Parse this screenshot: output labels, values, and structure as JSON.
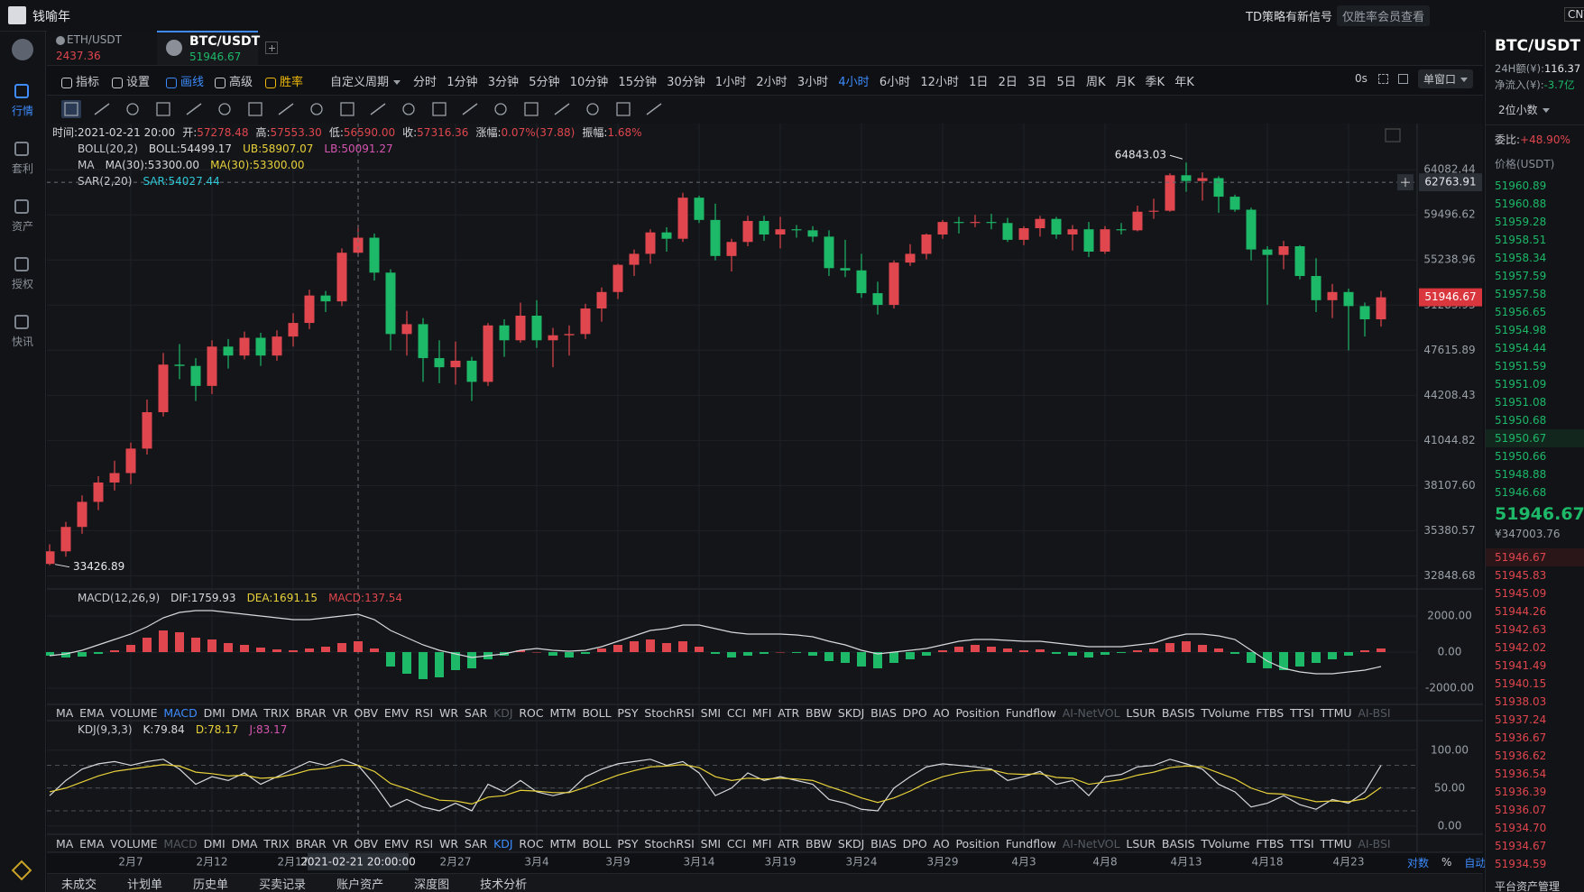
{
  "header": {
    "user": "钱喻年",
    "signal": "TD策略有新信号",
    "member": "仅胜率会员查看",
    "currency": "CNY"
  },
  "sidebar": {
    "items": [
      "行情",
      "套利",
      "资产",
      "授权",
      "快讯"
    ],
    "active": 0
  },
  "tabs": [
    {
      "symbol": "ETH/USDT",
      "price": "2437.36"
    },
    {
      "symbol": "BTC/USDT",
      "price": "51946.67"
    }
  ],
  "toolbar": {
    "tools": [
      "指标",
      "设置",
      "画线",
      "高级",
      "胜率"
    ],
    "custom": "自定义周期",
    "periods": [
      "分时",
      "1分钟",
      "3分钟",
      "5分钟",
      "10分钟",
      "15分钟",
      "30分钟",
      "1小时",
      "2小时",
      "3小时",
      "4小时",
      "6小时",
      "12小时",
      "1日",
      "2日",
      "3日",
      "5日",
      "周K",
      "月K",
      "季K",
      "年K"
    ],
    "active_period": 10,
    "timer": "0s",
    "window": "单窗口"
  },
  "chart_data": {
    "type": "candlestick",
    "log_scale": true,
    "grid": true,
    "up_color": "#e0464e",
    "down_color": "#1db868",
    "info": [
      {
        "label": "时间:",
        "value": "2021-02-21 20:00",
        "color": "#d6d8dc"
      },
      {
        "label": "开:",
        "value": "57278.48",
        "color": "#e0464e"
      },
      {
        "label": "高:",
        "value": "57553.30",
        "color": "#e0464e"
      },
      {
        "label": "低:",
        "value": "56590.00",
        "color": "#e0464e"
      },
      {
        "label": "收:",
        "value": "57316.36",
        "color": "#e0464e"
      },
      {
        "label": "涨幅:",
        "value": "0.07%(37.88)",
        "color": "#e0464e"
      },
      {
        "label": "振幅:",
        "value": "1.68%",
        "color": "#e0464e"
      }
    ],
    "overlays": [
      {
        "name": "BOLL(20,2)",
        "items": [
          {
            "text": "BOLL:54499.17",
            "color": "#d6d8dc"
          },
          {
            "text": "UB:58907.07",
            "color": "#e8d13a"
          },
          {
            "text": "LB:50091.27",
            "color": "#d655b0"
          }
        ]
      },
      {
        "name": "MA",
        "items": [
          {
            "text": "MA(30):53300.00",
            "color": "#d6d8dc"
          },
          {
            "text": "MA(30):53300.00",
            "color": "#e8d13a"
          }
        ]
      },
      {
        "name": "SAR(2,20)",
        "items": [
          {
            "text": "SAR:54027.44",
            "color": "#2fc7d6"
          }
        ]
      }
    ],
    "categories": [
      null,
      null,
      null,
      null,
      null,
      "2月7",
      null,
      null,
      null,
      null,
      "2月12",
      null,
      null,
      null,
      null,
      "2月17",
      null,
      null,
      null,
      null,
      null,
      null,
      null,
      null,
      null,
      "2月27",
      null,
      null,
      null,
      null,
      "3月4",
      null,
      null,
      null,
      null,
      "3月9",
      null,
      null,
      null,
      null,
      "3月14",
      null,
      null,
      null,
      null,
      "3月19",
      null,
      null,
      null,
      null,
      "3月24",
      null,
      null,
      null,
      null,
      "3月29",
      null,
      null,
      null,
      null,
      "4月3",
      null,
      null,
      null,
      null,
      "4月8",
      null,
      null,
      null,
      null,
      "4月13",
      null,
      null,
      null,
      null,
      "4月18",
      null,
      null,
      null,
      null,
      "4月23",
      null,
      null
    ],
    "ohlc": [
      [
        33500,
        34600,
        33426.89,
        34200
      ],
      [
        34200,
        35900,
        33900,
        35600
      ],
      [
        35600,
        37500,
        35200,
        37100
      ],
      [
        37100,
        38700,
        36600,
        38300
      ],
      [
        38300,
        39700,
        37800,
        38900
      ],
      [
        38900,
        40900,
        38200,
        40500
      ],
      [
        40500,
        43900,
        40100,
        43000
      ],
      [
        43000,
        47400,
        42700,
        46500
      ],
      [
        46500,
        48100,
        45400,
        46400
      ],
      [
        46400,
        47000,
        43800,
        44900
      ],
      [
        44900,
        48400,
        44300,
        47900
      ],
      [
        47900,
        48500,
        46200,
        47200
      ],
      [
        47200,
        49100,
        46900,
        48600
      ],
      [
        48600,
        49000,
        46400,
        47200
      ],
      [
        47200,
        49200,
        46800,
        48700
      ],
      [
        48700,
        50600,
        47900,
        49800
      ],
      [
        49800,
        52600,
        49300,
        52100
      ],
      [
        52100,
        52500,
        50700,
        51600
      ],
      [
        51600,
        56300,
        51200,
        55900
      ],
      [
        55900,
        58500,
        55600,
        57300
      ],
      [
        57300,
        57700,
        53400,
        54100
      ],
      [
        54100,
        54400,
        47600,
        48900
      ],
      [
        48900,
        50800,
        47200,
        49700
      ],
      [
        49700,
        50200,
        45200,
        47000
      ],
      [
        47000,
        48400,
        45100,
        46300
      ],
      [
        46300,
        48300,
        45000,
        46800
      ],
      [
        46800,
        47100,
        43800,
        45200
      ],
      [
        45200,
        49800,
        44900,
        49600
      ],
      [
        49600,
        50100,
        47100,
        48400
      ],
      [
        48400,
        51500,
        48200,
        50400
      ],
      [
        50400,
        51700,
        47800,
        48400
      ],
      [
        48400,
        49400,
        46300,
        48800
      ],
      [
        48800,
        49600,
        47200,
        48900
      ],
      [
        48900,
        51400,
        48500,
        51000
      ],
      [
        51000,
        52800,
        49900,
        52400
      ],
      [
        52400,
        54900,
        51800,
        54800
      ],
      [
        54800,
        56200,
        53800,
        55800
      ],
      [
        55800,
        58100,
        54900,
        57800
      ],
      [
        57800,
        58300,
        56000,
        57200
      ],
      [
        57200,
        61700,
        56900,
        61200
      ],
      [
        61200,
        61400,
        58700,
        59000
      ],
      [
        59000,
        60600,
        55200,
        55600
      ],
      [
        55600,
        57200,
        54200,
        56900
      ],
      [
        56900,
        59400,
        56500,
        58900
      ],
      [
        58900,
        59400,
        57000,
        57600
      ],
      [
        57600,
        59300,
        56300,
        58100
      ],
      [
        58100,
        58500,
        57300,
        58000
      ],
      [
        58000,
        58400,
        56900,
        57400
      ],
      [
        57400,
        58000,
        53800,
        54500
      ],
      [
        54500,
        57100,
        53700,
        54300
      ],
      [
        54300,
        55800,
        51900,
        52300
      ],
      [
        52300,
        53300,
        50500,
        51300
      ],
      [
        51300,
        55200,
        51000,
        55000
      ],
      [
        55000,
        56700,
        54700,
        55800
      ],
      [
        55800,
        57700,
        55300,
        57600
      ],
      [
        57600,
        59000,
        57200,
        58800
      ],
      [
        58800,
        59300,
        57700,
        58700
      ],
      [
        58700,
        59500,
        58300,
        58800
      ],
      [
        58800,
        59600,
        58100,
        58700
      ],
      [
        58700,
        59200,
        56900,
        57100
      ],
      [
        57100,
        58400,
        56600,
        58200
      ],
      [
        58200,
        59400,
        57400,
        59100
      ],
      [
        59100,
        59300,
        57200,
        57600
      ],
      [
        57600,
        58500,
        56100,
        58100
      ],
      [
        58100,
        58800,
        55500,
        56000
      ],
      [
        56000,
        58400,
        55800,
        58100
      ],
      [
        58100,
        58700,
        57600,
        58000
      ],
      [
        58000,
        60400,
        57900,
        59800
      ],
      [
        59800,
        61100,
        59100,
        59900
      ],
      [
        59900,
        63700,
        59800,
        63500
      ],
      [
        63500,
        64843.03,
        61800,
        62900
      ],
      [
        62900,
        63800,
        60900,
        63200
      ],
      [
        63200,
        63400,
        59700,
        61300
      ],
      [
        61300,
        61500,
        59800,
        60000
      ],
      [
        60000,
        60200,
        55200,
        56200
      ],
      [
        56200,
        56500,
        51300,
        55700
      ],
      [
        55700,
        57000,
        54400,
        56500
      ],
      [
        56500,
        56600,
        53500,
        53800
      ],
      [
        53800,
        55400,
        50700,
        51700
      ],
      [
        51700,
        53100,
        50200,
        52400
      ],
      [
        52400,
        52700,
        47600,
        51200
      ],
      [
        51200,
        51500,
        48700,
        50100
      ],
      [
        50100,
        52500,
        49500,
        51946.67
      ]
    ],
    "ylim": [
      32147,
      68830
    ],
    "yticks": [
      64082.44,
      59496.62,
      55238.96,
      51283.93,
      47615.89,
      44208.43,
      41044.82,
      {
        "value": 38107.6,
        "label": "38107.60"
      },
      35380.57,
      32848.68
    ],
    "crosshair": {
      "price": 62763.91,
      "time": "2021-02-21 20:00:00"
    },
    "axis_modes": [
      "对数",
      "%",
      "自动"
    ],
    "macd": {
      "name": "MACD(12,26,9)",
      "items": [
        {
          "text": "DIF:1759.93",
          "color": "#d6d8dc"
        },
        {
          "text": "DEA:1691.15",
          "color": "#e8d13a"
        },
        {
          "text": "MACD:137.54",
          "color": "#e0464e"
        }
      ],
      "ylim": [
        -2900,
        3400
      ],
      "yticks": [
        {
          "value": 2000,
          "label": "2000.00"
        },
        {
          "value": 0,
          "label": "0.00"
        },
        {
          "value": -2000,
          "label": "-2000.00"
        }
      ],
      "series": [
        {
          "name": "MACD",
          "type": "bar",
          "values": [
            -200,
            -300,
            -250,
            -100,
            100,
            400,
            800,
            1200,
            1100,
            800,
            700,
            500,
            400,
            250,
            150,
            100,
            200,
            300,
            500,
            600,
            200,
            -800,
            -1200,
            -1500,
            -1400,
            -1000,
            -900,
            -400,
            -200,
            100,
            0,
            -200,
            -300,
            -100,
            200,
            400,
            600,
            700,
            500,
            600,
            300,
            -100,
            -300,
            -200,
            -100,
            0,
            -50,
            -200,
            -500,
            -600,
            -800,
            -900,
            -600,
            -400,
            -200,
            100,
            300,
            400,
            300,
            200,
            100,
            150,
            -100,
            -200,
            -300,
            -150,
            -50,
            100,
            200,
            500,
            600,
            400,
            200,
            -100,
            -600,
            -900,
            -1000,
            -800,
            -600,
            -400,
            -200,
            100,
            200
          ]
        },
        {
          "name": "DIF",
          "type": "line",
          "color": "#d6d8dc",
          "values": [
            -200,
            -100,
            100,
            400,
            700,
            1000,
            1400,
            1900,
            2200,
            2300,
            2300,
            2200,
            2100,
            2000,
            1900,
            1800,
            1800,
            1900,
            2000,
            2100,
            1800,
            1200,
            800,
            400,
            100,
            -100,
            -300,
            -200,
            -100,
            100,
            200,
            100,
            50,
            100,
            300,
            600,
            900,
            1200,
            1300,
            1500,
            1500,
            1300,
            1100,
            1000,
            1000,
            1000,
            950,
            850,
            600,
            400,
            100,
            -100,
            0,
            100,
            200,
            400,
            600,
            700,
            700,
            650,
            600,
            600,
            500,
            400,
            300,
            300,
            300,
            400,
            500,
            800,
            1000,
            1000,
            900,
            700,
            100,
            -500,
            -900,
            -1100,
            -1200,
            -1200,
            -1100,
            -1000,
            -800
          ]
        }
      ]
    },
    "kdj": {
      "name": "KDJ(9,3,3)",
      "items": [
        {
          "text": "K:79.84",
          "color": "#d6d8dc"
        },
        {
          "text": "D:78.17",
          "color": "#e8d13a"
        },
        {
          "text": "J:83.17",
          "color": "#d655b0"
        }
      ],
      "ylim": [
        -11,
        139
      ],
      "yticks": [
        {
          "value": 100,
          "label": "100.00"
        },
        {
          "value": 50,
          "label": "50.00"
        },
        {
          "value": 0,
          "label": "0.00"
        }
      ],
      "levels": [
        80,
        50,
        20
      ],
      "series": [
        {
          "name": "K",
          "color": "#d6d8dc",
          "values": [
            40,
            60,
            75,
            82,
            85,
            80,
            85,
            88,
            75,
            55,
            65,
            60,
            70,
            55,
            65,
            75,
            85,
            80,
            88,
            80,
            55,
            25,
            35,
            25,
            20,
            30,
            20,
            55,
            45,
            60,
            45,
            40,
            45,
            65,
            75,
            82,
            85,
            88,
            80,
            85,
            70,
            40,
            50,
            70,
            60,
            65,
            60,
            55,
            35,
            30,
            22,
            20,
            50,
            65,
            78,
            82,
            80,
            78,
            75,
            60,
            65,
            72,
            55,
            60,
            40,
            65,
            68,
            78,
            80,
            88,
            82,
            75,
            55,
            45,
            25,
            30,
            40,
            28,
            22,
            35,
            30,
            45,
            80
          ]
        },
        {
          "name": "D",
          "color": "#e8d13a",
          "values": [
            45,
            50,
            58,
            66,
            72,
            75,
            78,
            81,
            79,
            71,
            69,
            66,
            67,
            63,
            64,
            68,
            74,
            76,
            80,
            80,
            72,
            56,
            49,
            41,
            34,
            33,
            29,
            38,
            40,
            47,
            46,
            44,
            44,
            51,
            59,
            67,
            73,
            78,
            79,
            81,
            77,
            65,
            60,
            63,
            62,
            63,
            62,
            60,
            52,
            45,
            37,
            31,
            37,
            46,
            57,
            65,
            70,
            73,
            74,
            69,
            68,
            69,
            64,
            63,
            55,
            58,
            61,
            67,
            71,
            77,
            79,
            78,
            70,
            62,
            50,
            43,
            42,
            37,
            32,
            33,
            32,
            36,
            51
          ]
        }
      ]
    },
    "indicators": [
      "MA",
      "EMA",
      "VOLUME",
      "MACD",
      "DMI",
      "DMA",
      "TRIX",
      "BRAR",
      "VR",
      "OBV",
      "EMV",
      "RSI",
      "WR",
      "SAR",
      "KDJ",
      "ROC",
      "MTM",
      "BOLL",
      "PSY",
      "StochRSI",
      "SMI",
      "CCI",
      "MFI",
      "ATR",
      "BBW",
      "SKDJ",
      "BIAS",
      "DPO",
      "AO",
      "Position",
      "Fundflow",
      "AI-NetVOL",
      "LSUR",
      "BASIS",
      "TVolume",
      "FTBS",
      "TTSI",
      "TTMU",
      "AI-BSI"
    ],
    "indicator_rows": [
      {
        "active": 3,
        "muted": [
          14,
          31,
          38
        ]
      },
      {
        "active": 14,
        "muted": [
          3,
          31,
          38
        ]
      }
    ]
  },
  "bottom_tabs": [
    "未成交",
    "计划单",
    "历史单",
    "买卖记录",
    "账户资产",
    "深度图",
    "技术分析"
  ],
  "panel": {
    "symbol": "BTC/USDT",
    "volume_label": "24H额(¥):",
    "volume": "116.37",
    "inflow_label": "净流入(¥):",
    "inflow": "-3.7亿",
    "decimals": "2位小数",
    "ratio_label": "委比:",
    "ratio": "+48.90%",
    "price_header": "价格(USDT)",
    "asks": [
      "51960.89",
      "51960.88",
      "51959.28",
      "51958.51",
      "51958.34",
      "51957.59",
      "51957.58",
      "51956.65",
      "51954.98",
      "51954.44",
      "51951.59",
      "51951.09",
      "51951.08",
      "51950.68",
      "51950.67",
      "51950.66",
      "51948.88",
      "51946.68"
    ],
    "last": "51946.67",
    "last_cny": "¥347003.76",
    "bids": [
      "51946.67",
      "51945.83",
      "51945.09",
      "51944.26",
      "51942.63",
      "51942.02",
      "51941.49",
      "51940.15",
      "51938.03",
      "51937.24",
      "51936.67",
      "51936.62",
      "51936.54",
      "51936.39",
      "51936.07",
      "51934.70",
      "51934.67",
      "51934.59"
    ],
    "footer": "平台资产管理"
  }
}
